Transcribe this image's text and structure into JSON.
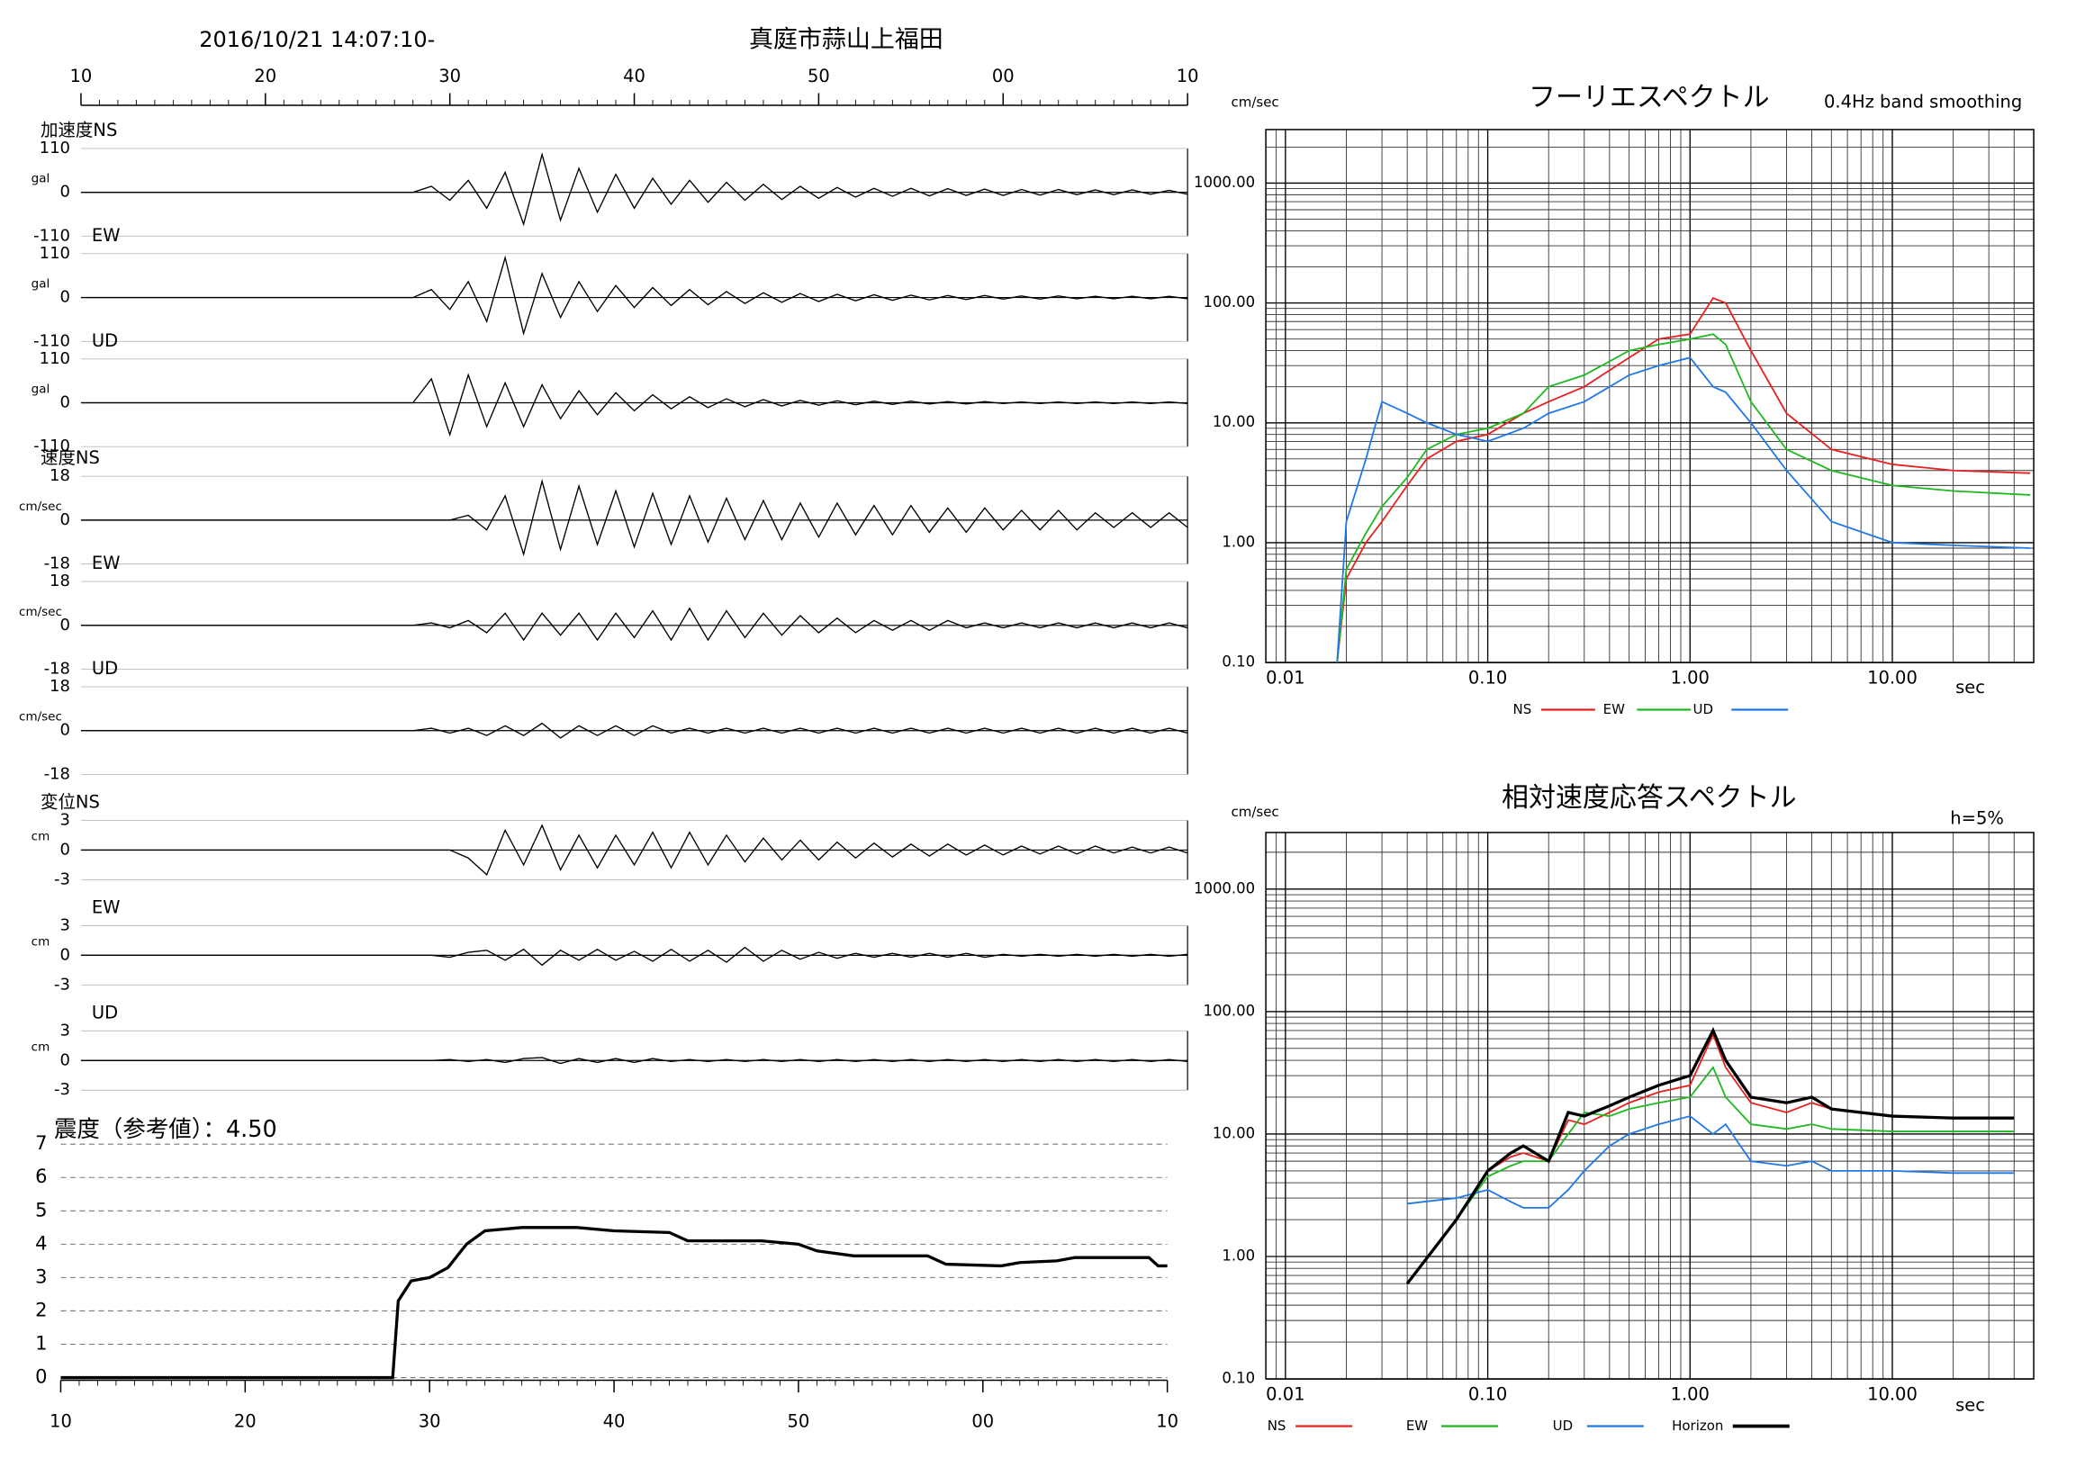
{
  "chart_data": [
    {
      "type": "waveform",
      "title": "真庭市蒜山上福田",
      "subtitle": "2016/10/21 14:07:10-",
      "color": "#000000",
      "x": [
        10,
        28,
        29,
        30,
        31,
        32,
        33,
        34,
        35,
        36,
        37,
        38,
        39,
        40,
        41,
        42,
        43,
        44,
        45,
        46,
        47,
        48,
        49,
        50,
        51,
        52,
        53,
        54,
        55,
        56,
        57,
        58,
        59,
        60,
        61,
        62,
        63,
        64,
        65,
        66,
        67,
        68,
        69,
        70
      ],
      "xlim": [
        10,
        70
      ],
      "xticks": [
        10,
        20,
        30,
        40,
        50,
        {
          "value": 60,
          "label": "00"
        },
        {
          "value": 70,
          "label": "10"
        }
      ],
      "panels": [
        {
          "label": "加速度NS",
          "unit": "gal",
          "ylim": [
            -110,
            110
          ],
          "yticks": [
            110,
            0,
            -110
          ],
          "values": [
            0,
            0,
            15,
            -20,
            30,
            -40,
            50,
            -80,
            95,
            -70,
            60,
            -50,
            45,
            -40,
            35,
            -30,
            30,
            -25,
            25,
            -20,
            20,
            -18,
            15,
            -15,
            12,
            -12,
            10,
            -10,
            10,
            -9,
            9,
            -8,
            8,
            -8,
            7,
            -7,
            7,
            -6,
            6,
            -6,
            6,
            -5,
            5,
            -5
          ]
        },
        {
          "label": "EW",
          "unit": "gal",
          "ylim": [
            -110,
            110
          ],
          "yticks": [
            110,
            0,
            -110
          ],
          "values": [
            0,
            0,
            20,
            -30,
            40,
            -60,
            100,
            -90,
            60,
            -50,
            40,
            -35,
            30,
            -25,
            25,
            -20,
            20,
            -18,
            15,
            -15,
            12,
            -12,
            10,
            -10,
            8,
            -8,
            7,
            -7,
            6,
            -6,
            5,
            -5,
            5,
            -4,
            4,
            -4,
            4,
            -3,
            3,
            -3,
            3,
            -3,
            3,
            -3
          ]
        },
        {
          "label": "UD",
          "unit": "gal",
          "ylim": [
            -110,
            110
          ],
          "yticks": [
            110,
            0,
            -110
          ],
          "values": [
            0,
            0,
            60,
            -80,
            70,
            -60,
            50,
            -60,
            45,
            -40,
            30,
            -30,
            25,
            -20,
            20,
            -15,
            15,
            -12,
            10,
            -10,
            8,
            -8,
            6,
            -6,
            5,
            -5,
            4,
            -4,
            4,
            -3,
            3,
            -3,
            3,
            -2,
            2,
            -2,
            2,
            -2,
            2,
            -2,
            2,
            -2,
            2,
            -2
          ]
        },
        {
          "label": "速度NS",
          "unit": "cm/sec",
          "ylim": [
            -18,
            18
          ],
          "yticks": [
            18,
            0,
            -18
          ],
          "values": [
            0,
            0,
            0,
            0,
            2,
            -4,
            10,
            -14,
            16,
            -12,
            14,
            -10,
            12,
            -11,
            11,
            -10,
            10,
            -9,
            9,
            -8,
            8,
            -8,
            7,
            -7,
            7,
            -6,
            6,
            -6,
            6,
            -5,
            5,
            -5,
            5,
            -4,
            4,
            -4,
            4,
            -4,
            3,
            -3,
            3,
            -3,
            3,
            -3
          ]
        },
        {
          "label": "EW",
          "unit": "cm/sec",
          "ylim": [
            -18,
            18
          ],
          "yticks": [
            18,
            0,
            -18
          ],
          "values": [
            0,
            0,
            1,
            -1,
            2,
            -3,
            5,
            -6,
            5,
            -4,
            5,
            -6,
            5,
            -5,
            6,
            -6,
            7,
            -6,
            6,
            -5,
            5,
            -4,
            4,
            -3,
            3,
            -3,
            2,
            -2,
            2,
            -2,
            2,
            -1,
            1,
            -1,
            1,
            -1,
            1,
            -1,
            1,
            -1,
            1,
            -1,
            1,
            -1
          ]
        },
        {
          "label": "UD",
          "unit": "cm/sec",
          "ylim": [
            -18,
            18
          ],
          "yticks": [
            18,
            0,
            -18
          ],
          "values": [
            0,
            0,
            1,
            -1,
            1,
            -2,
            2,
            -2,
            3,
            -3,
            2,
            -2,
            2,
            -2,
            2,
            -1,
            1,
            -1,
            1,
            -1,
            1,
            -1,
            1,
            -1,
            1,
            -1,
            1,
            -1,
            1,
            -1,
            1,
            -1,
            1,
            -1,
            1,
            -1,
            1,
            -1,
            1,
            -1,
            1,
            -1,
            1,
            -1
          ]
        },
        {
          "label": "変位NS",
          "unit": "cm",
          "ylim": [
            -3,
            3
          ],
          "yticks": [
            3,
            0,
            -3
          ],
          "values": [
            0,
            0,
            0,
            0,
            -0.8,
            -2.5,
            2,
            -1.5,
            2.5,
            -2,
            1.5,
            -1.8,
            1.5,
            -1.5,
            1.8,
            -1.8,
            1.8,
            -1.5,
            1.5,
            -1.2,
            1.2,
            -1,
            1,
            -1,
            0.8,
            -0.8,
            0.7,
            -0.7,
            0.6,
            -0.6,
            0.6,
            -0.5,
            0.5,
            -0.5,
            0.4,
            -0.4,
            0.4,
            -0.4,
            0.4,
            -0.3,
            0.3,
            -0.3,
            0.3,
            -0.3
          ]
        },
        {
          "label": "EW",
          "unit": "cm",
          "ylim": [
            -3,
            3
          ],
          "yticks": [
            3,
            0,
            -3
          ],
          "values": [
            0,
            0,
            0,
            -0.2,
            0.3,
            0.5,
            -0.5,
            0.6,
            -1,
            0.5,
            -0.5,
            0.6,
            -0.5,
            0.4,
            -0.6,
            0.6,
            -0.6,
            0.5,
            -0.7,
            0.8,
            -0.6,
            0.5,
            -0.4,
            0.3,
            -0.3,
            0.2,
            -0.2,
            0.2,
            -0.2,
            0.2,
            -0.2,
            0.2,
            -0.2,
            0.1,
            -0.1,
            0.1,
            -0.1,
            0.1,
            -0.1,
            0.1,
            -0.1,
            0.1,
            -0.1,
            0.1
          ]
        },
        {
          "label": "UD",
          "unit": "cm",
          "ylim": [
            -3,
            3
          ],
          "yticks": [
            3,
            0,
            -3
          ],
          "values": [
            0,
            0,
            0,
            0.1,
            -0.1,
            0.1,
            -0.2,
            0.2,
            0.3,
            -0.3,
            0.2,
            -0.2,
            0.2,
            -0.2,
            0.2,
            -0.1,
            0.1,
            -0.1,
            0.1,
            -0.1,
            0.1,
            -0.1,
            0.1,
            -0.1,
            0.1,
            -0.1,
            0.1,
            -0.1,
            0.1,
            -0.1,
            0.1,
            -0.1,
            0.1,
            -0.1,
            0.1,
            -0.1,
            0.1,
            -0.1,
            0.1,
            -0.1,
            0.1,
            -0.1,
            0.1,
            -0.1
          ]
        }
      ]
    },
    {
      "type": "line",
      "title": "震度（参考値）：4.50",
      "color": "#000000",
      "grid": true,
      "x": [
        10,
        28,
        28.3,
        29,
        30,
        31,
        32,
        33,
        35,
        38,
        40,
        43,
        44,
        48,
        50,
        51,
        53,
        57,
        58,
        61,
        62,
        64,
        65,
        69,
        69.5,
        70
      ],
      "values": [
        0,
        0,
        2.3,
        2.9,
        3.0,
        3.3,
        4.0,
        4.4,
        4.5,
        4.5,
        4.4,
        4.35,
        4.1,
        4.1,
        4.0,
        3.8,
        3.65,
        3.65,
        3.4,
        3.35,
        3.45,
        3.5,
        3.6,
        3.6,
        3.35,
        3.35
      ],
      "xlim": [
        10,
        70
      ],
      "xticks": [
        10,
        20,
        30,
        40,
        50,
        {
          "value": 60,
          "label": "00"
        },
        {
          "value": 70,
          "label": "10"
        }
      ],
      "ylim": [
        0,
        7
      ],
      "yticks": [
        0,
        1,
        2,
        3,
        4,
        5,
        6,
        7
      ]
    },
    {
      "type": "logline",
      "title": "フーリエスペクトル",
      "subtitle": "0.4Hz band smoothing",
      "y_label": "cm/sec",
      "x_label": "sec",
      "xscale": "log",
      "yscale": "log",
      "grid": true,
      "xlim": [
        0.008,
        50
      ],
      "ylim": [
        0.1,
        2800
      ],
      "xticks": [
        {
          "value": 0.01,
          "label": "0.01"
        },
        {
          "value": 0.1,
          "label": "0.10"
        },
        {
          "value": 1,
          "label": "1.00"
        },
        {
          "value": 10,
          "label": "10.00"
        }
      ],
      "yticks": [
        {
          "value": 0.1,
          "label": "0.10"
        },
        {
          "value": 1,
          "label": "1.00"
        },
        {
          "value": 10,
          "label": "10.00"
        },
        {
          "value": 100,
          "label": "100.00"
        },
        {
          "value": 1000,
          "label": "1000.00"
        }
      ],
      "x": [
        0.018,
        0.02,
        0.025,
        0.03,
        0.04,
        0.05,
        0.07,
        0.1,
        0.15,
        0.2,
        0.3,
        0.5,
        0.7,
        1.0,
        1.3,
        1.5,
        2,
        3,
        5,
        10,
        20,
        48
      ],
      "series": [
        {
          "name": "NS",
          "color": "#e8201f",
          "values": [
            0.1,
            0.5,
            1.0,
            1.5,
            3,
            5,
            7,
            8,
            12,
            15,
            20,
            35,
            50,
            55,
            110,
            100,
            40,
            12,
            6,
            4.5,
            4,
            3.8
          ]
        },
        {
          "name": "EW",
          "color": "#1fb81f",
          "values": [
            0.1,
            0.6,
            1.2,
            2,
            3.5,
            6,
            8,
            9,
            12,
            20,
            25,
            40,
            45,
            50,
            55,
            45,
            15,
            6,
            4,
            3,
            2.7,
            2.5
          ]
        },
        {
          "name": "UD",
          "color": "#1f78e8",
          "values": [
            0.1,
            1.5,
            5,
            15,
            12,
            10,
            8,
            7,
            9,
            12,
            15,
            25,
            30,
            35,
            20,
            18,
            10,
            4,
            1.5,
            1.0,
            0.95,
            0.9
          ]
        }
      ]
    },
    {
      "type": "logline",
      "title": "相対速度応答スペクトル",
      "subtitle": "h=5%",
      "y_label": "cm/sec",
      "x_label": "sec",
      "xscale": "log",
      "yscale": "log",
      "grid": true,
      "xlim": [
        0.008,
        50
      ],
      "ylim": [
        0.1,
        2900
      ],
      "xticks": [
        {
          "value": 0.01,
          "label": "0.01"
        },
        {
          "value": 0.1,
          "label": "0.10"
        },
        {
          "value": 1,
          "label": "1.00"
        },
        {
          "value": 10,
          "label": "10.00"
        }
      ],
      "yticks": [
        {
          "value": 0.1,
          "label": "0.10"
        },
        {
          "value": 1,
          "label": "1.00"
        },
        {
          "value": 10,
          "label": "10.00"
        },
        {
          "value": 100,
          "label": "100.00"
        },
        {
          "value": 1000,
          "label": "1000.00"
        }
      ],
      "x": [
        0.04,
        0.07,
        0.1,
        0.13,
        0.15,
        0.2,
        0.25,
        0.3,
        0.4,
        0.5,
        0.7,
        1.0,
        1.3,
        1.5,
        2,
        3,
        4,
        5,
        10,
        20,
        40
      ],
      "series": [
        {
          "name": "NS",
          "color": "#e8201f",
          "values": [
            0.6,
            2,
            5,
            6.5,
            7,
            6,
            13,
            12,
            15,
            18,
            22,
            25,
            65,
            35,
            18,
            15,
            18,
            16,
            14,
            13.5,
            13.5
          ]
        },
        {
          "name": "EW",
          "color": "#1fb81f",
          "values": [
            0.6,
            2,
            4.5,
            5.5,
            6,
            6,
            10,
            15,
            14,
            16,
            18,
            20,
            35,
            20,
            12,
            11,
            12,
            11,
            10.5,
            10.5,
            10.5
          ]
        },
        {
          "name": "UD",
          "color": "#1f78e8",
          "values": [
            2.7,
            3,
            3.5,
            2.8,
            2.5,
            2.5,
            3.5,
            5,
            8,
            10,
            12,
            14,
            10,
            12,
            6,
            5.5,
            6,
            5,
            5,
            4.8,
            4.8
          ]
        },
        {
          "name": "Horizon",
          "color": "#000000",
          "values": [
            0.6,
            2,
            5,
            7,
            8,
            6,
            15,
            14,
            17,
            20,
            25,
            30,
            70,
            40,
            20,
            18,
            20,
            16,
            14,
            13.5,
            13.5
          ]
        }
      ]
    }
  ]
}
